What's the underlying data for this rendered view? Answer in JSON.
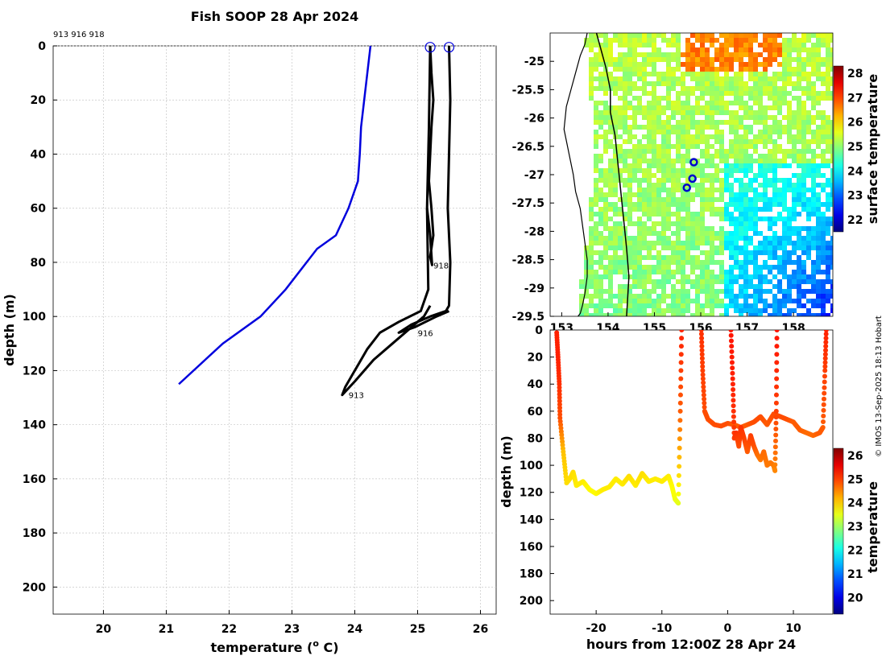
{
  "figure": {
    "title": "Fish SOOP 28 Apr 2024",
    "tag_ids": "913 916 918",
    "credit": "© IMOS 13-Sep-2025 18:13 Hobart"
  },
  "chart_data": [
    {
      "id": "profile",
      "type": "line",
      "title": "Fish SOOP 28 Apr 2024",
      "xlabel": "temperature (",
      "xlabel_unit": "o",
      "xlabel_tail": " C)",
      "ylabel": "depth (m)",
      "xlim": [
        19.2,
        26.25
      ],
      "ylim": [
        0,
        210
      ],
      "y_reversed": true,
      "xticks": [
        20,
        21,
        22,
        23,
        24,
        25,
        26
      ],
      "yticks": [
        0,
        20,
        40,
        60,
        80,
        100,
        120,
        140,
        160,
        180,
        200
      ],
      "grid": true,
      "climatology": {
        "name": "climatology",
        "color": "#0000dd",
        "x": [
          24.25,
          24.2,
          24.15,
          24.1,
          24.08,
          24.05,
          23.9,
          23.7,
          23.4,
          22.9,
          22.5,
          21.9,
          21.2
        ],
        "y": [
          0,
          10,
          20,
          30,
          40,
          50,
          60,
          70,
          75,
          90,
          100,
          110,
          125
        ]
      },
      "tag_profiles": [
        {
          "label": "918",
          "color": "#000000",
          "label_at": [
            25.2,
            81
          ],
          "x": [
            25.2,
            25.22,
            25.25,
            25.22,
            25.2,
            25.18,
            25.22,
            25.25,
            25.2,
            25.23,
            25.2,
            25.15
          ],
          "y": [
            0,
            10,
            20,
            30,
            40,
            50,
            60,
            70,
            78,
            81,
            70,
            60
          ]
        },
        {
          "label": "916",
          "color": "#000000",
          "label_at": [
            24.95,
            106
          ],
          "x": [
            25.5,
            25.52,
            25.5,
            25.48,
            25.52,
            25.5,
            25.45,
            25.2,
            24.9,
            24.7,
            24.95,
            25.3,
            25.5
          ],
          "y": [
            0,
            20,
            40,
            60,
            80,
            96,
            98,
            100,
            103,
            106,
            104,
            100,
            98
          ]
        },
        {
          "label": "913",
          "color": "#000000",
          "label_at": [
            23.85,
            129
          ],
          "x": [
            25.2,
            25.18,
            25.15,
            25.17,
            25.05,
            24.7,
            24.4,
            24.2,
            24.05,
            23.95,
            23.85,
            23.8,
            24.0,
            24.3,
            24.6,
            24.9,
            25.1,
            25.2
          ],
          "y": [
            0,
            30,
            60,
            90,
            98,
            102,
            106,
            112,
            118,
            122,
            126,
            129,
            124,
            116,
            110,
            104,
            100,
            96
          ]
        }
      ],
      "surface_markers": [
        {
          "x": 25.2,
          "y": 0.5
        },
        {
          "x": 25.5,
          "y": 0.5
        }
      ]
    },
    {
      "id": "sst_map",
      "type": "heatmap",
      "xlabel": "",
      "ylabel": "",
      "xlim": [
        152.75,
        158.85
      ],
      "ylim": [
        -29.5,
        -24.5
      ],
      "xticks": [
        153,
        154,
        155,
        156,
        157,
        158
      ],
      "yticks": [
        -25,
        -25.5,
        -26,
        -26.5,
        -27,
        -27.5,
        -28,
        -28.5,
        -29,
        -29.5
      ],
      "colorbar": {
        "label": "surface temperature",
        "range": [
          21.5,
          28.3
        ],
        "ticks": [
          22,
          23,
          24,
          25,
          26,
          27,
          28
        ]
      },
      "tag_positions": [
        {
          "lon": 155.85,
          "lat": -26.78
        },
        {
          "lon": 155.82,
          "lat": -27.07
        },
        {
          "lon": 155.7,
          "lat": -27.23
        }
      ],
      "coastline": {
        "lon": [
          153.55,
          153.5,
          153.4,
          153.3,
          153.2,
          153.1,
          153.05,
          153.15,
          153.25,
          153.3,
          153.4,
          153.45,
          153.5,
          153.55,
          153.55,
          153.5,
          153.45,
          153.4,
          153.35
        ],
        "lat": [
          -24.5,
          -24.7,
          -24.9,
          -25.2,
          -25.5,
          -25.8,
          -26.2,
          -26.6,
          -27.0,
          -27.3,
          -27.6,
          -27.9,
          -28.2,
          -28.5,
          -28.8,
          -29.1,
          -29.3,
          -29.45,
          -29.5
        ]
      },
      "contour": {
        "lon": [
          153.75,
          153.85,
          153.95,
          154.05,
          154.05,
          154.15,
          154.2,
          154.25,
          154.3,
          154.35,
          154.4,
          154.45,
          154.4
        ],
        "lat": [
          -24.5,
          -24.8,
          -25.1,
          -25.5,
          -25.9,
          -26.3,
          -26.7,
          -27.1,
          -27.5,
          -27.9,
          -28.3,
          -28.8,
          -29.5
        ]
      }
    },
    {
      "id": "depth_time",
      "type": "scatter",
      "xlabel": "hours from 12:00Z 28 Apr 24",
      "ylabel": "depth (m)",
      "xlim": [
        -27,
        16
      ],
      "ylim": [
        0,
        210
      ],
      "y_reversed": true,
      "xticks": [
        -20,
        -10,
        0,
        10
      ],
      "yticks": [
        0,
        20,
        40,
        60,
        80,
        100,
        120,
        140,
        160,
        180,
        200
      ],
      "colorbar": {
        "label": "temperature",
        "range": [
          19.3,
          26.3
        ],
        "ticks": [
          20,
          21,
          22,
          23,
          24,
          25,
          26
        ]
      },
      "series": [
        {
          "name": "913",
          "x": [
            -26,
            -25.8,
            -25.6,
            -25.5,
            -25,
            -24.5,
            -24,
            -23.5,
            -23,
            -22,
            -21,
            -20,
            -19,
            -18,
            -17,
            -16,
            -15,
            -14,
            -13,
            -12,
            -11,
            -10,
            -9,
            -8.5,
            -8,
            -7.5,
            -7.2,
            -7
          ],
          "y": [
            2,
            20,
            40,
            65,
            90,
            113,
            110,
            105,
            115,
            112,
            118,
            121,
            118,
            116,
            110,
            114,
            108,
            115,
            106,
            112,
            110,
            112,
            108,
            115,
            125,
            128,
            60,
            0
          ],
          "t": [
            25.2,
            25.2,
            25.1,
            24.9,
            24.1,
            23.9,
            23.9,
            23.9,
            23.8,
            23.8,
            23.7,
            23.7,
            23.8,
            23.8,
            23.8,
            23.8,
            23.9,
            23.8,
            23.9,
            23.8,
            23.8,
            23.8,
            23.8,
            23.7,
            23.6,
            23.5,
            24.8,
            25.2
          ]
        },
        {
          "name": "916",
          "x": [
            -4,
            -3.8,
            -3.5,
            -3,
            -2,
            -1,
            0,
            1,
            2,
            3,
            4,
            5,
            6,
            7,
            8,
            9,
            10,
            11,
            12,
            13,
            14,
            14.5,
            14.8,
            15
          ],
          "y": [
            0,
            30,
            60,
            66,
            70,
            71,
            69,
            70,
            72,
            70,
            68,
            64,
            70,
            62,
            64,
            66,
            68,
            74,
            76,
            78,
            76,
            72,
            30,
            0
          ],
          "t": [
            25.1,
            25.0,
            24.9,
            24.9,
            24.9,
            24.9,
            24.9,
            24.8,
            24.8,
            24.8,
            24.9,
            24.9,
            24.8,
            24.9,
            24.9,
            24.9,
            24.8,
            24.8,
            24.7,
            24.7,
            24.8,
            24.8,
            25.0,
            25.2
          ]
        },
        {
          "name": "918",
          "x": [
            0.5,
            0.8,
            1.0,
            1.3,
            1.7,
            2,
            2.5,
            3,
            3.5,
            4,
            4.5,
            5,
            5.5,
            6,
            6.5,
            7,
            7.2,
            7.4,
            7.5
          ],
          "y": [
            0,
            40,
            80,
            76,
            86,
            72,
            80,
            90,
            78,
            86,
            92,
            96,
            90,
            100,
            98,
            100,
            104,
            60,
            0
          ],
          "t": [
            25.3,
            25.2,
            25.0,
            25.1,
            24.9,
            25.1,
            25.0,
            24.8,
            25.0,
            24.9,
            24.7,
            24.6,
            24.7,
            24.6,
            24.6,
            24.6,
            24.5,
            25.0,
            25.3
          ]
        }
      ]
    }
  ]
}
